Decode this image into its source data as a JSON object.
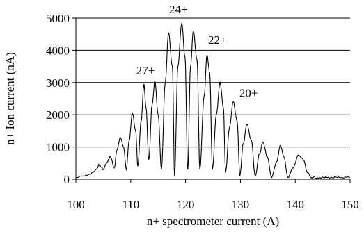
{
  "chart_data": {
    "type": "line",
    "title": "",
    "xlabel": "n+ spectrometer current (A)",
    "ylabel": "n+ Ion current (nA)",
    "xlim": [
      100,
      150
    ],
    "ylim": [
      0,
      5000
    ],
    "xticks": [
      "100",
      "110",
      "120",
      "130",
      "140",
      "150"
    ],
    "yticks": [
      "0",
      "1000",
      "2000",
      "3000",
      "4000",
      "5000"
    ],
    "grid": "horizontal",
    "legend": "none",
    "line_color": "#000000",
    "series": [
      {
        "x": [
          100,
          101.5,
          102.5,
          103.2,
          103.8,
          104.2,
          104.6,
          105.0,
          105.6,
          106.3,
          107.0,
          107.5,
          108.1,
          108.7,
          109.2,
          109.7,
          110.3,
          110.9,
          111.3,
          111.9,
          112.4,
          112.8,
          113.3,
          113.9,
          114.4,
          115.0,
          115.6,
          116.3,
          116.9,
          117.6,
          118.0,
          118.6,
          119.3,
          119.9,
          120.4,
          120.9,
          121.4,
          122.1,
          122.6,
          123.4,
          123.9,
          124.4,
          124.9,
          125.6,
          126.3,
          126.9,
          127.3,
          128.0,
          128.7,
          129.4,
          129.9,
          130.5,
          131.2,
          132.0,
          132.7,
          133.5,
          134.1,
          134.9,
          135.7,
          136.6,
          137.3,
          137.9,
          138.7,
          139.6,
          140.6,
          141.5,
          142.2,
          143.0,
          144.0,
          145.1,
          145.9,
          146.9,
          147.7,
          148.6,
          150.0
        ],
        "y": [
          50,
          100,
          150,
          220,
          320,
          450,
          380,
          300,
          500,
          700,
          350,
          900,
          1300,
          1000,
          300,
          1200,
          2050,
          1500,
          400,
          1800,
          2950,
          2200,
          600,
          2300,
          3050,
          2000,
          300,
          3000,
          4550,
          3500,
          100,
          3500,
          4850,
          3800,
          300,
          3500,
          4600,
          3700,
          300,
          2600,
          3850,
          3300,
          300,
          2000,
          3000,
          2200,
          200,
          1600,
          2400,
          1800,
          100,
          1100,
          1700,
          1200,
          100,
          800,
          1150,
          700,
          50,
          550,
          1050,
          700,
          50,
          350,
          750,
          600,
          200,
          50,
          50,
          50,
          50,
          50,
          50,
          50,
          50
        ]
      }
    ],
    "annotations": [
      {
        "text": "27+",
        "x": 112.7,
        "y": 3250
      },
      {
        "text": "24+",
        "x": 118.7,
        "y": 5150
      },
      {
        "text": "22+",
        "x": 125.8,
        "y": 4200
      },
      {
        "text": "20+",
        "x": 131.5,
        "y": 2550
      }
    ]
  }
}
